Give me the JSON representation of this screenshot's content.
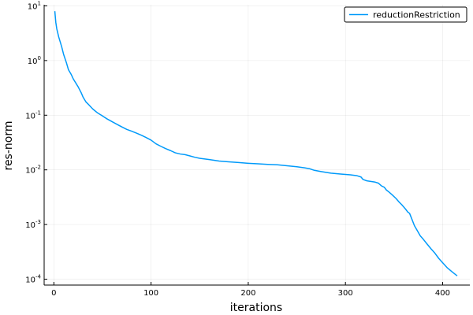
{
  "chart_data": {
    "type": "line",
    "title": "",
    "xlabel": "iterations",
    "ylabel": "res-norm",
    "xlim": [
      -10,
      428
    ],
    "ylim": [
      7.8e-05,
      10.5
    ],
    "yscale": "log",
    "xticks": [
      0,
      100,
      200,
      300,
      400
    ],
    "xtick_labels": [
      "0",
      "100",
      "200",
      "300",
      "400"
    ],
    "yticks": [
      10,
      1,
      0.1,
      0.01,
      0.001,
      0.0001
    ],
    "ytick_labels": [
      {
        "base": "10",
        "exp": "1"
      },
      {
        "base": "10",
        "exp": "0"
      },
      {
        "base": "10",
        "exp": "-1"
      },
      {
        "base": "10",
        "exp": "-2"
      },
      {
        "base": "10",
        "exp": "-3"
      },
      {
        "base": "10",
        "exp": "-4"
      }
    ],
    "grid": true,
    "legend_position": "top-right",
    "series": [
      {
        "name": "reductionRestriction",
        "color": "#009AFA",
        "points": [
          [
            1,
            8.0
          ],
          [
            2,
            5.0
          ],
          [
            3,
            3.8
          ],
          [
            5,
            2.7
          ],
          [
            8,
            1.8
          ],
          [
            10,
            1.3
          ],
          [
            13,
            0.9
          ],
          [
            15,
            0.68
          ],
          [
            18,
            0.55
          ],
          [
            20,
            0.46
          ],
          [
            25,
            0.33
          ],
          [
            28,
            0.26
          ],
          [
            30,
            0.215
          ],
          [
            33,
            0.175
          ],
          [
            36,
            0.155
          ],
          [
            40,
            0.13
          ],
          [
            45,
            0.11
          ],
          [
            50,
            0.097
          ],
          [
            55,
            0.085
          ],
          [
            60,
            0.076
          ],
          [
            65,
            0.068
          ],
          [
            70,
            0.061
          ],
          [
            75,
            0.055
          ],
          [
            80,
            0.051
          ],
          [
            85,
            0.047
          ],
          [
            90,
            0.043
          ],
          [
            95,
            0.039
          ],
          [
            100,
            0.035
          ],
          [
            105,
            0.03
          ],
          [
            110,
            0.027
          ],
          [
            115,
            0.0245
          ],
          [
            120,
            0.0225
          ],
          [
            125,
            0.0205
          ],
          [
            130,
            0.0195
          ],
          [
            135,
            0.019
          ],
          [
            140,
            0.018
          ],
          [
            145,
            0.017
          ],
          [
            150,
            0.0163
          ],
          [
            160,
            0.0154
          ],
          [
            170,
            0.0145
          ],
          [
            180,
            0.014
          ],
          [
            190,
            0.0136
          ],
          [
            200,
            0.0132
          ],
          [
            210,
            0.0129
          ],
          [
            220,
            0.0126
          ],
          [
            230,
            0.0124
          ],
          [
            240,
            0.0119
          ],
          [
            250,
            0.0114
          ],
          [
            258,
            0.0109
          ],
          [
            263,
            0.0105
          ],
          [
            268,
            0.0098
          ],
          [
            275,
            0.0093
          ],
          [
            285,
            0.0087
          ],
          [
            295,
            0.0084
          ],
          [
            305,
            0.0081
          ],
          [
            312,
            0.0078
          ],
          [
            316,
            0.0074
          ],
          [
            318,
            0.0067
          ],
          [
            322,
            0.0063
          ],
          [
            330,
            0.006
          ],
          [
            334,
            0.0057
          ],
          [
            337,
            0.0051
          ],
          [
            340,
            0.0048
          ],
          [
            342,
            0.0043
          ],
          [
            345,
            0.0039
          ],
          [
            348,
            0.0035
          ],
          [
            352,
            0.003
          ],
          [
            355,
            0.0026
          ],
          [
            358,
            0.0023
          ],
          [
            362,
            0.0019
          ],
          [
            364,
            0.0017
          ],
          [
            366,
            0.0016
          ],
          [
            368,
            0.0013
          ],
          [
            371,
            0.00095
          ],
          [
            374,
            0.00077
          ],
          [
            377,
            0.00062
          ],
          [
            380,
            0.00054
          ],
          [
            384,
            0.00044
          ],
          [
            388,
            0.00036
          ],
          [
            392,
            0.0003
          ],
          [
            396,
            0.00024
          ],
          [
            400,
            0.0002
          ],
          [
            405,
            0.00016
          ],
          [
            410,
            0.000135
          ],
          [
            415,
            0.000115
          ]
        ]
      }
    ]
  }
}
